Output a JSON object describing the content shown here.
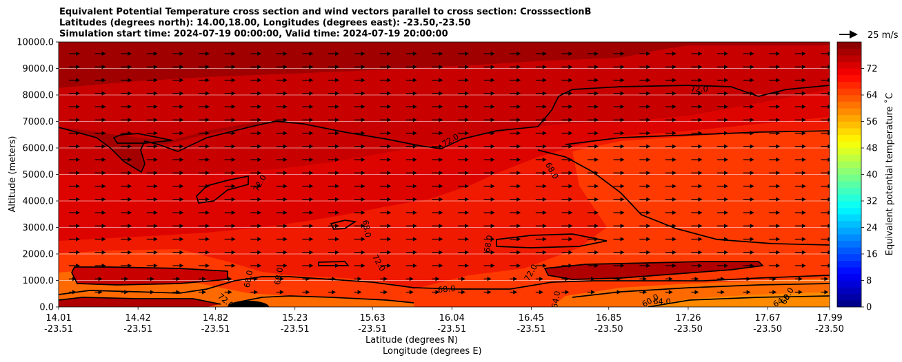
{
  "chart_data": {
    "type": "contourf",
    "title_lines": [
      "Equivalent Potential Temperature cross section and wind vectors parallel to cross section: CrosssectionB",
      "Latitudes (degrees north): 14.00,18.00, Longitudes (degrees east): -23.50,-23.50",
      "Simulation start time: 2024-07-19 00:00:00, Valid time: 2024-07-19 20:00:00"
    ],
    "xlabel": "Latitude (degrees N)",
    "xlabel2": "Longitude (degrees E)",
    "ylabel": "Altitude (meters)",
    "x_ticks": [
      {
        "lat": "14.01",
        "lon": "-23.51"
      },
      {
        "lat": "14.42",
        "lon": "-23.51"
      },
      {
        "lat": "14.82",
        "lon": "-23.51"
      },
      {
        "lat": "15.23",
        "lon": "-23.51"
      },
      {
        "lat": "15.63",
        "lon": "-23.51"
      },
      {
        "lat": "16.04",
        "lon": "-23.51"
      },
      {
        "lat": "16.45",
        "lon": "-23.51"
      },
      {
        "lat": "16.85",
        "lon": "-23.50"
      },
      {
        "lat": "17.26",
        "lon": "-23.50"
      },
      {
        "lat": "17.67",
        "lon": "-23.50"
      },
      {
        "lat": "17.99",
        "lon": "-23.50"
      }
    ],
    "y_ticks": [
      "0.0",
      "1000.0",
      "2000.0",
      "3000.0",
      "4000.0",
      "5000.0",
      "6000.0",
      "7000.0",
      "8000.0",
      "9000.0",
      "10000.0"
    ],
    "ylim": [
      0,
      10000
    ],
    "xlim": [
      14.01,
      17.99
    ],
    "grid": "horizontal",
    "colorbar": {
      "label": "Equivalent potential temperature $^\\circ$C",
      "label_text": "Equivalent potential temperature ˚C",
      "ticks": [
        "0",
        "8",
        "16",
        "24",
        "32",
        "40",
        "48",
        "56",
        "64",
        "72"
      ],
      "range": [
        0,
        80
      ],
      "colormap": "jet"
    },
    "contour_labels": [
      "72.0",
      "72.0",
      "68.0",
      "68.0",
      "72.0",
      "68.0",
      "68.0",
      "68.0",
      "72.0",
      "68.0",
      "72.0",
      "64.0",
      "72.0",
      "60.0",
      "64.0",
      "64.0",
      "68.0"
    ],
    "quiver_key": {
      "label": "25 m/s",
      "magnitude": 25
    },
    "wind": "vectors parallel to cross section, pointing north, roughly uniform above 500 m"
  },
  "colors": {
    "band_76_80": "#a00000",
    "band_72_76": "#c80000",
    "band_70_72": "#dd0400",
    "band_68_70": "#f01a00",
    "band_66_68": "#ff3a00",
    "band_64_66": "#ff6a00",
    "band_62_64": "#ff8a00"
  }
}
